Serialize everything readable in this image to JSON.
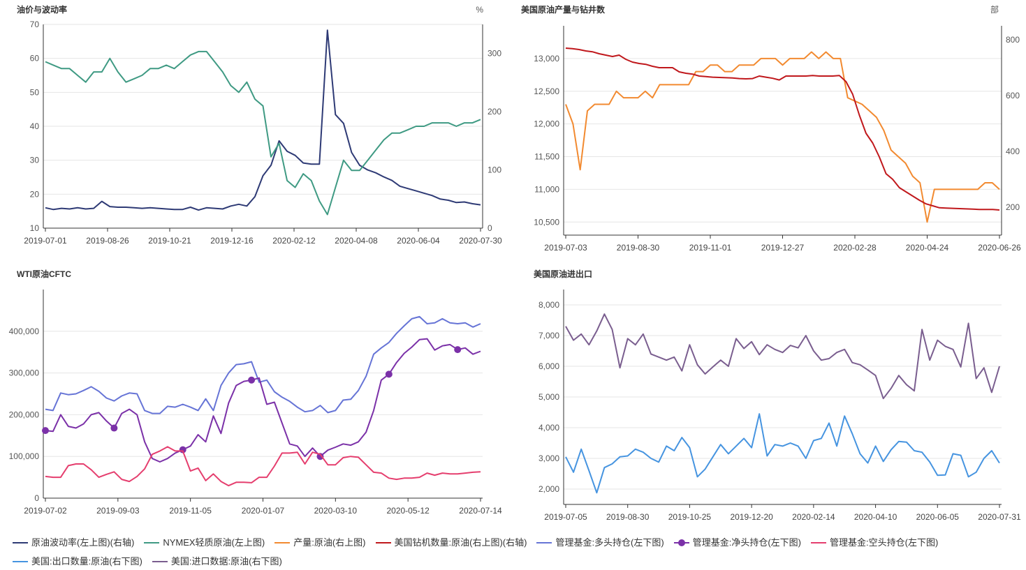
{
  "chart_data": [
    {
      "type": "line",
      "title": "油价与波动率",
      "y_right_unit": "%",
      "x_ticks": [
        "2019-07-01",
        "2019-08-26",
        "2019-10-21",
        "2019-12-16",
        "2020-02-12",
        "2020-04-08",
        "2020-06-04",
        "2020-07-30"
      ],
      "ylim_left": [
        10,
        70
      ],
      "yticks_left": [
        10,
        20,
        30,
        40,
        50,
        60,
        70
      ],
      "ylim_right": [
        0,
        350
      ],
      "yticks_right": [
        0,
        100,
        200,
        300
      ],
      "series": [
        {
          "name": "原油波动率(左上图)(右轴)",
          "color": "#2e3a75",
          "axis": "right",
          "values": [
            35,
            32,
            34,
            33,
            35,
            33,
            34,
            46,
            37,
            36,
            36,
            35,
            34,
            35,
            34,
            33,
            32,
            32,
            36,
            31,
            35,
            34,
            33,
            38,
            41,
            38,
            54,
            90,
            108,
            150,
            132,
            125,
            112,
            110,
            110,
            340,
            195,
            180,
            130,
            108,
            100,
            95,
            88,
            82,
            72,
            68,
            64,
            60,
            56,
            50,
            48,
            44,
            45,
            42,
            40
          ]
        },
        {
          "name": "NYMEX轻质原油(左上图)",
          "color": "#3f9a83",
          "axis": "left",
          "values": [
            59,
            58,
            57,
            57,
            55,
            53,
            56,
            56,
            60,
            56,
            53,
            54,
            55,
            57,
            57,
            58,
            57,
            59,
            61,
            62,
            62,
            59,
            56,
            52,
            50,
            53,
            48,
            46,
            31,
            35,
            24,
            22,
            26,
            24,
            18,
            14,
            22,
            30,
            27,
            27,
            30,
            33,
            36,
            38,
            38,
            39,
            40,
            40,
            41,
            41,
            41,
            40,
            41,
            41,
            42
          ]
        }
      ]
    },
    {
      "type": "line",
      "title": "美国原油产量与钻井数",
      "y_right_unit": "部",
      "x_ticks": [
        "2019-07-03",
        "2019-08-30",
        "2019-11-01",
        "2019-12-27",
        "2020-02-28",
        "2020-04-24",
        "2020-06-26"
      ],
      "ylim_left": [
        10300,
        13500
      ],
      "yticks_left": [
        10500,
        11000,
        11500,
        12000,
        12500,
        13000
      ],
      "ylim_right": [
        100,
        850
      ],
      "yticks_right": [
        200,
        400,
        600,
        800
      ],
      "series": [
        {
          "name": "产量:原油(右上图)",
          "color": "#f28a30",
          "axis": "left",
          "values": [
            12300,
            12000,
            11300,
            12200,
            12300,
            12300,
            12300,
            12500,
            12400,
            12400,
            12400,
            12500,
            12400,
            12600,
            12600,
            12600,
            12600,
            12600,
            12800,
            12800,
            12900,
            12900,
            12800,
            12800,
            12900,
            12900,
            12900,
            13000,
            13000,
            13000,
            12900,
            13000,
            13000,
            13000,
            13100,
            13000,
            13100,
            13000,
            13000,
            12400,
            12350,
            12300,
            12200,
            12100,
            11900,
            11600,
            11500,
            11400,
            11200,
            11100,
            10500,
            11000,
            11000,
            11000,
            11000,
            11000,
            11000,
            11000,
            11100,
            11100,
            11000
          ]
        },
        {
          "name": "美国钻机数量:原油(右上图)(右轴)",
          "color": "#c0181c",
          "axis": "right",
          "values": [
            770,
            768,
            765,
            760,
            757,
            750,
            745,
            740,
            745,
            730,
            720,
            715,
            712,
            705,
            700,
            700,
            700,
            685,
            680,
            677,
            670,
            668,
            666,
            665,
            664,
            663,
            661,
            660,
            661,
            670,
            666,
            662,
            656,
            670,
            670,
            670,
            670,
            672,
            670,
            670,
            670,
            672,
            650,
            605,
            530,
            465,
            430,
            380,
            320,
            300,
            270,
            255,
            240,
            225,
            212,
            205,
            198,
            197,
            196,
            195,
            194,
            193,
            192,
            192,
            192,
            190
          ]
        }
      ]
    },
    {
      "type": "line",
      "title": "WTI原油CFTC",
      "x_ticks": [
        "2019-07-02",
        "2019-09-03",
        "2019-11-05",
        "2020-01-07",
        "2020-03-10",
        "2020-05-12",
        "2020-07-14"
      ],
      "ylim": [
        0,
        500000
      ],
      "yticks": [
        0,
        100000,
        200000,
        300000,
        400000
      ],
      "series": [
        {
          "name": "管理基金:多头持仓(左下图)",
          "color": "#6674d6",
          "markers": false,
          "values": [
            213000,
            210000,
            252000,
            248000,
            250000,
            258000,
            267000,
            256000,
            240000,
            233000,
            245000,
            252000,
            250000,
            210000,
            203000,
            203000,
            220000,
            218000,
            225000,
            218000,
            210000,
            238000,
            210000,
            270000,
            300000,
            320000,
            322000,
            327000,
            278000,
            283000,
            255000,
            242000,
            232000,
            218000,
            207000,
            210000,
            222000,
            205000,
            210000,
            235000,
            237000,
            258000,
            292000,
            345000,
            360000,
            373000,
            395000,
            413000,
            430000,
            435000,
            418000,
            420000,
            430000,
            420000,
            418000,
            420000,
            410000,
            418000
          ]
        },
        {
          "name": "管理基金:净头持仓(左下图)",
          "color": "#7b31a8",
          "markers": true,
          "values": [
            162000,
            160000,
            200000,
            172000,
            168000,
            178000,
            200000,
            205000,
            185000,
            168000,
            203000,
            213000,
            200000,
            135000,
            95000,
            87000,
            95000,
            108000,
            116000,
            125000,
            152000,
            135000,
            197000,
            155000,
            228000,
            270000,
            280000,
            283000,
            288000,
            225000,
            230000,
            180000,
            130000,
            125000,
            100000,
            120000,
            100000,
            115000,
            122000,
            130000,
            127000,
            135000,
            158000,
            210000,
            283000,
            297000,
            325000,
            347000,
            362000,
            380000,
            382000,
            355000,
            365000,
            368000,
            356000,
            360000,
            345000,
            352000
          ],
          "marker_indices": [
            0,
            9,
            18,
            27,
            36,
            45,
            54
          ]
        },
        {
          "name": "管理基金:空头持仓(左下图)",
          "color": "#e53e6e",
          "markers": false,
          "values": [
            52000,
            50000,
            50000,
            78000,
            82000,
            82000,
            68000,
            50000,
            57000,
            63000,
            45000,
            40000,
            52000,
            70000,
            105000,
            113000,
            123000,
            113000,
            113000,
            65000,
            72000,
            42000,
            58000,
            40000,
            30000,
            38000,
            38000,
            37000,
            50000,
            50000,
            77000,
            108000,
            108000,
            110000,
            82000,
            110000,
            105000,
            80000,
            80000,
            97000,
            100000,
            98000,
            80000,
            62000,
            60000,
            48000,
            45000,
            48000,
            48000,
            50000,
            60000,
            55000,
            60000,
            58000,
            58000,
            60000,
            62000,
            63000
          ]
        }
      ]
    },
    {
      "type": "line",
      "title": "美国原油进出口",
      "x_ticks": [
        "2019-07-05",
        "2019-08-30",
        "2019-10-25",
        "2019-12-20",
        "2020-02-14",
        "2020-04-10",
        "2020-06-05",
        "2020-07-31"
      ],
      "ylim": [
        1500,
        8500
      ],
      "yticks": [
        2000,
        3000,
        4000,
        5000,
        6000,
        7000,
        8000
      ],
      "series": [
        {
          "name": "美国:出口数量:原油(右下图)",
          "color": "#4694e0",
          "values": [
            3050,
            2550,
            3300,
            2600,
            1880,
            2700,
            2820,
            3050,
            3080,
            3300,
            3200,
            3000,
            2880,
            3400,
            3250,
            3680,
            3350,
            2400,
            2650,
            3050,
            3450,
            3150,
            3400,
            3650,
            3350,
            4450,
            3080,
            3450,
            3400,
            3500,
            3400,
            3000,
            3580,
            3650,
            4150,
            3400,
            4380,
            3800,
            3150,
            2850,
            3400,
            2900,
            3280,
            3550,
            3530,
            3250,
            3200,
            2880,
            2450,
            2460,
            3150,
            3100,
            2400,
            2550,
            3000,
            3250,
            2850
          ]
        },
        {
          "name": "美国:进口数据:原油(右下图)",
          "color": "#7a5e8f",
          "values": [
            7300,
            6850,
            7050,
            6700,
            7150,
            7700,
            7200,
            5950,
            6900,
            6700,
            7050,
            6400,
            6300,
            6200,
            6300,
            5850,
            6700,
            6050,
            5750,
            5980,
            6200,
            6000,
            6900,
            6580,
            6800,
            6380,
            6700,
            6550,
            6450,
            6680,
            6600,
            7000,
            6500,
            6200,
            6250,
            6450,
            6550,
            6120,
            6050,
            5880,
            5700,
            4950,
            5280,
            5700,
            5400,
            5200,
            7200,
            6200,
            6850,
            6650,
            6550,
            5980,
            7400,
            5600,
            5950,
            5150,
            6000
          ]
        }
      ]
    }
  ],
  "legend": [
    {
      "label": "原油波动率(左上图)(右轴)",
      "color": "#2e3a75",
      "marker": false
    },
    {
      "label": "NYMEX轻质原油(左上图)",
      "color": "#3f9a83",
      "marker": false
    },
    {
      "label": "产量:原油(右上图)",
      "color": "#f28a30",
      "marker": false
    },
    {
      "label": "美国钻机数量:原油(右上图)(右轴)",
      "color": "#c0181c",
      "marker": false
    },
    {
      "label": "管理基金:多头持仓(左下图)",
      "color": "#6674d6",
      "marker": false
    },
    {
      "label": "管理基金:净头持仓(左下图)",
      "color": "#7b31a8",
      "marker": true
    },
    {
      "label": "管理基金:空头持仓(左下图)",
      "color": "#e53e6e",
      "marker": false
    },
    {
      "label": "美国:出口数量:原油(右下图)",
      "color": "#4694e0",
      "marker": false
    },
    {
      "label": "美国:进口数据:原油(右下图)",
      "color": "#7a5e8f",
      "marker": false
    }
  ]
}
